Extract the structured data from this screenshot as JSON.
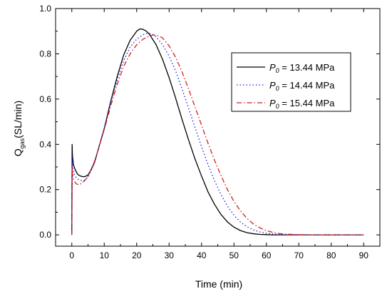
{
  "chart_data": {
    "type": "line",
    "xlabel": "Time (min)",
    "ylabel": "Q",
    "ylabel_sub": "gas",
    "ylabel_unit": "(SL/min)",
    "xlim": [
      -5,
      95
    ],
    "ylim": [
      -0.05,
      1.0
    ],
    "x_ticks": [
      0,
      10,
      20,
      30,
      40,
      50,
      60,
      70,
      80,
      90
    ],
    "x_tick_labels": [
      "0",
      "10",
      "20",
      "30",
      "40",
      "50",
      "60",
      "70",
      "80",
      "90"
    ],
    "y_ticks": [
      0.0,
      0.2,
      0.4,
      0.6,
      0.8,
      1.0
    ],
    "y_tick_labels": [
      "0.0",
      "0.2",
      "0.4",
      "0.6",
      "0.8",
      "1.0"
    ],
    "grid": false,
    "legend_position": "top-right",
    "series": [
      {
        "name": "P",
        "name_sub": "0",
        "name_rest": " = 13.44 MPa",
        "color": "#000000",
        "dash": "solid",
        "x": [
          0,
          0.1,
          0.2,
          0.5,
          1,
          1.5,
          2,
          3,
          4,
          5,
          6,
          7,
          8,
          10,
          12,
          14,
          16,
          18,
          20,
          21,
          22,
          23,
          24,
          26,
          28,
          30,
          32,
          34,
          36,
          38,
          40,
          42,
          44,
          46,
          48,
          50,
          52,
          54,
          56,
          58,
          60,
          62,
          65,
          70,
          75,
          80,
          85,
          90
        ],
        "y": [
          0.0,
          0.4,
          0.35,
          0.31,
          0.29,
          0.275,
          0.265,
          0.258,
          0.257,
          0.265,
          0.29,
          0.32,
          0.37,
          0.47,
          0.59,
          0.7,
          0.795,
          0.86,
          0.9,
          0.91,
          0.908,
          0.9,
          0.885,
          0.84,
          0.775,
          0.695,
          0.605,
          0.51,
          0.42,
          0.335,
          0.26,
          0.19,
          0.135,
          0.09,
          0.057,
          0.034,
          0.019,
          0.01,
          0.005,
          0.002,
          0.001,
          0.0,
          0.0,
          0.0,
          0.0,
          0.0,
          0.0,
          0.0
        ]
      },
      {
        "name": "P",
        "name_sub": "0",
        "name_rest": " = 14.44 MPa",
        "color": "#1f1fd6",
        "dash": "dotted",
        "x": [
          0,
          0.1,
          0.2,
          0.5,
          1,
          1.5,
          2,
          3,
          4,
          5,
          6,
          7,
          8,
          10,
          12,
          14,
          16,
          18,
          20,
          22,
          23,
          24,
          25,
          26,
          28,
          30,
          32,
          34,
          36,
          38,
          40,
          42,
          44,
          46,
          48,
          50,
          52,
          54,
          56,
          58,
          60,
          62,
          64,
          66,
          70,
          75,
          80,
          85,
          90
        ],
        "y": [
          0.0,
          0.34,
          0.31,
          0.28,
          0.26,
          0.25,
          0.245,
          0.24,
          0.242,
          0.255,
          0.285,
          0.32,
          0.37,
          0.47,
          0.585,
          0.685,
          0.77,
          0.83,
          0.865,
          0.885,
          0.89,
          0.89,
          0.885,
          0.875,
          0.84,
          0.79,
          0.725,
          0.645,
          0.56,
          0.475,
          0.39,
          0.31,
          0.24,
          0.178,
          0.127,
          0.087,
          0.057,
          0.036,
          0.022,
          0.013,
          0.007,
          0.004,
          0.002,
          0.001,
          0.0,
          0.0,
          0.0,
          0.0,
          0.0
        ]
      },
      {
        "name": "P",
        "name_sub": "0",
        "name_rest": " = 15.44 MPa",
        "color": "#d61f1f",
        "dash": "dashdot",
        "x": [
          0,
          0.1,
          0.2,
          0.5,
          1,
          1.5,
          2,
          2.5,
          3,
          4,
          5,
          6,
          7,
          8,
          10,
          12,
          14,
          16,
          18,
          20,
          22,
          24,
          25,
          26,
          27,
          28,
          30,
          32,
          34,
          36,
          38,
          40,
          42,
          44,
          46,
          48,
          50,
          52,
          54,
          56,
          58,
          60,
          62,
          64,
          66,
          68,
          70,
          75,
          80,
          85,
          90
        ],
        "y": [
          0.0,
          0.3,
          0.27,
          0.245,
          0.232,
          0.225,
          0.222,
          0.223,
          0.228,
          0.24,
          0.26,
          0.29,
          0.325,
          0.37,
          0.465,
          0.57,
          0.665,
          0.745,
          0.8,
          0.84,
          0.865,
          0.88,
          0.883,
          0.882,
          0.878,
          0.87,
          0.835,
          0.785,
          0.72,
          0.645,
          0.565,
          0.485,
          0.405,
          0.33,
          0.262,
          0.2,
          0.148,
          0.106,
          0.073,
          0.048,
          0.031,
          0.019,
          0.011,
          0.006,
          0.003,
          0.002,
          0.001,
          0.0,
          0.0,
          0.0,
          0.0
        ]
      }
    ]
  }
}
